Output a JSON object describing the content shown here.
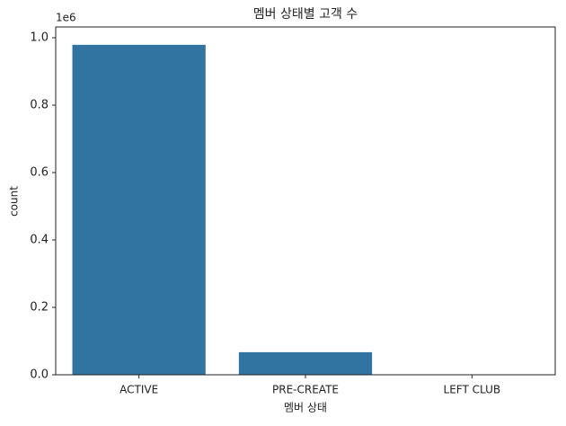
{
  "chart_data": {
    "type": "bar",
    "title": "멤버 상태별 고객 수",
    "x_label": "멤버 상태",
    "y_label": "count",
    "y_offset_label": "1e6",
    "categories": [
      "ACTIVE",
      "PRE-CREATE",
      "LEFT CLUB"
    ],
    "values": [
      0.979,
      0.067,
      0.001
    ],
    "color": "#3274a1",
    "ylim": [
      0,
      1.032
    ],
    "yticks": [
      {
        "value": 0,
        "label": "0.0"
      },
      0.2,
      0.4,
      0.6,
      0.8,
      {
        "value": 1,
        "label": "1.0"
      }
    ]
  }
}
